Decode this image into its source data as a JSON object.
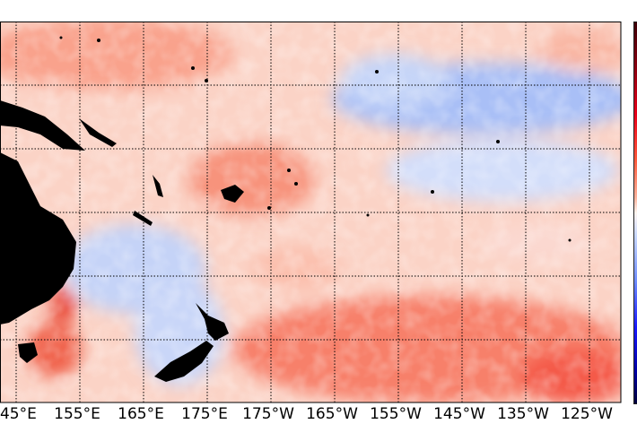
{
  "map": {
    "type": "sea-surface-anomaly-map",
    "lon_labels": [
      "145°E",
      "155°E",
      "165°E",
      "175°E",
      "175°W",
      "165°W",
      "155°W",
      "145°W",
      "135°W",
      "125°W"
    ],
    "colors": {
      "warm": "#ff4040",
      "cool": "#5a7cff",
      "land": "#000000",
      "neutral": "#ffffff"
    }
  }
}
